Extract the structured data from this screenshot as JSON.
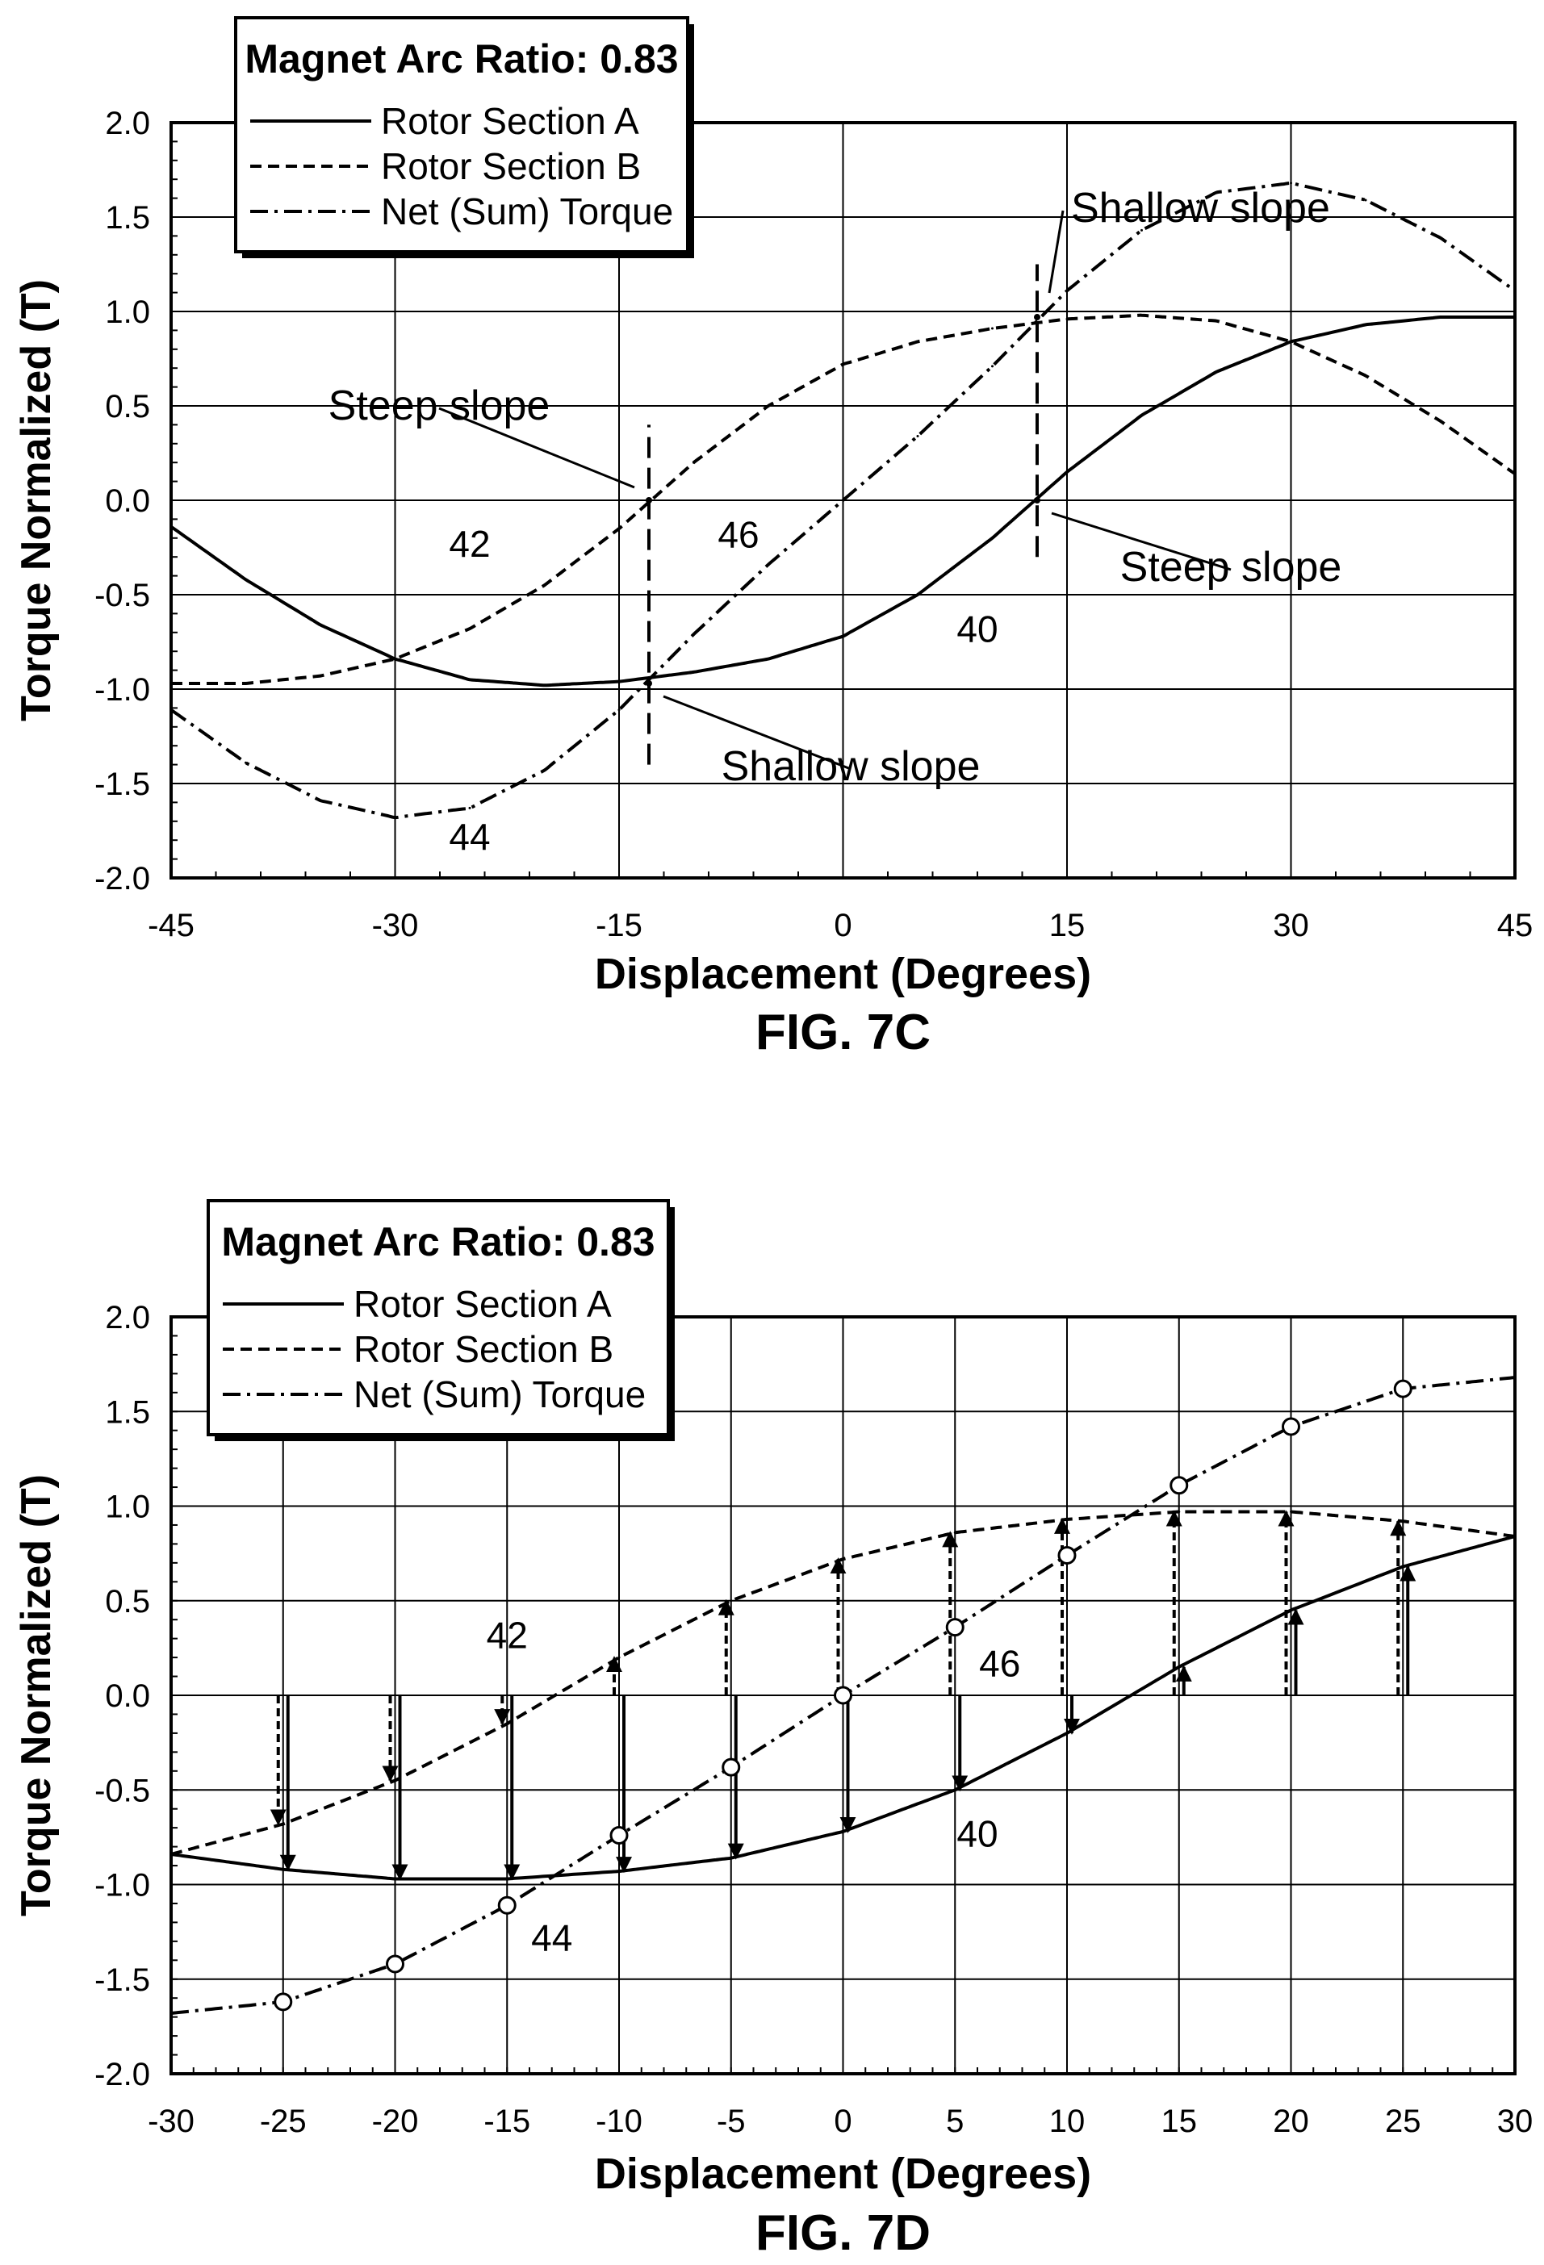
{
  "chart_data": [
    {
      "type": "line",
      "title": "",
      "caption": "FIG. 7C",
      "xlabel": "Displacement (Degrees)",
      "ylabel": "Torque Normalized (T)",
      "xlim": [
        -45,
        45
      ],
      "ylim": [
        -2.0,
        2.0
      ],
      "x_ticks": [
        -45,
        -30,
        -15,
        0,
        15,
        30,
        45
      ],
      "x_tick_labels": [
        "-45",
        "-30",
        "-15",
        "0",
        "15",
        "30",
        "45"
      ],
      "y_ticks": [
        2.0,
        1.5,
        1.0,
        0.5,
        0.0,
        -0.5,
        -1.0,
        -1.5,
        -2.0
      ],
      "y_tick_labels": [
        "2.0",
        "1.5",
        "1.0",
        "0.5",
        "0.0",
        "-0.5",
        "-1.0",
        "-1.5",
        "-2.0"
      ],
      "grid": true,
      "legend": {
        "placement": "top-left",
        "title": "Magnet Arc Ratio: 0.83",
        "entries": [
          "Rotor Section A",
          "Rotor Section B",
          "Net (Sum) Torque"
        ]
      },
      "series": [
        {
          "name": "Rotor Section A",
          "style": "solid",
          "ref": "40",
          "x": [
            -45,
            -40,
            -35,
            -30,
            -25,
            -20,
            -15,
            -10,
            -5,
            0,
            5,
            10,
            15,
            20,
            25,
            30,
            35,
            40,
            45
          ],
          "y": [
            -0.14,
            -0.42,
            -0.66,
            -0.84,
            -0.95,
            -0.98,
            -0.96,
            -0.91,
            -0.84,
            -0.72,
            -0.5,
            -0.2,
            0.15,
            0.45,
            0.68,
            0.84,
            0.93,
            0.97,
            0.97
          ]
        },
        {
          "name": "Rotor Section B",
          "style": "dashed",
          "ref": "42",
          "x": [
            -45,
            -40,
            -35,
            -30,
            -25,
            -20,
            -15,
            -10,
            -5,
            0,
            5,
            10,
            15,
            20,
            25,
            30,
            35,
            40,
            45
          ],
          "y": [
            -0.97,
            -0.97,
            -0.93,
            -0.84,
            -0.68,
            -0.45,
            -0.15,
            0.2,
            0.5,
            0.72,
            0.84,
            0.91,
            0.96,
            0.98,
            0.95,
            0.84,
            0.66,
            0.42,
            0.14
          ]
        },
        {
          "name": "Net (Sum) Torque",
          "style": "dashdot",
          "ref": "44 / 46",
          "x": [
            -45,
            -40,
            -35,
            -30,
            -25,
            -20,
            -15,
            -10,
            -5,
            0,
            5,
            10,
            15,
            20,
            25,
            30,
            35,
            40,
            45
          ],
          "y": [
            -1.11,
            -1.39,
            -1.59,
            -1.68,
            -1.63,
            -1.43,
            -1.11,
            -0.71,
            -0.34,
            0.0,
            0.34,
            0.71,
            1.11,
            1.43,
            1.63,
            1.68,
            1.59,
            1.39,
            1.11
          ]
        }
      ],
      "markers": [
        {
          "x": -13,
          "y": 0.0
        },
        {
          "x": -13,
          "y": -0.97
        },
        {
          "x": 13,
          "y": 0.97
        },
        {
          "x": 13,
          "y": 0.0
        }
      ],
      "vertical_dashed_lines": [
        {
          "x": -13,
          "y_from": -1.4,
          "y_to": 0.4
        },
        {
          "x": 13,
          "y_from": -0.3,
          "y_to": 1.25
        }
      ],
      "annotations": [
        {
          "text": "Shallow slope",
          "x": 13,
          "y": 0.97
        },
        {
          "text": "Steep slope",
          "x": -13,
          "y": 0.0
        },
        {
          "text": "Steep slope",
          "x": 13,
          "y": 0.0
        },
        {
          "text": "Shallow slope",
          "x": -13,
          "y": -0.97
        },
        {
          "text": "42",
          "x": -25,
          "y": -0.3
        },
        {
          "text": "46",
          "x": -7,
          "y": -0.25
        },
        {
          "text": "40",
          "x": 9,
          "y": -0.75
        },
        {
          "text": "44",
          "x": -25,
          "y": -1.85
        }
      ]
    },
    {
      "type": "line",
      "title": "",
      "caption": "FIG. 7D",
      "xlabel": "Displacement (Degrees)",
      "ylabel": "Torque Normalized (T)",
      "xlim": [
        -30,
        30
      ],
      "ylim": [
        -2.0,
        2.0
      ],
      "x_ticks": [
        -30,
        -25,
        -20,
        -15,
        -10,
        -5,
        0,
        5,
        10,
        15,
        20,
        25,
        30
      ],
      "x_tick_labels": [
        "-30",
        "-25",
        "-20",
        "-15",
        "-10",
        "-5",
        "0",
        "5",
        "10",
        "15",
        "20",
        "25",
        "30"
      ],
      "y_ticks": [
        2.0,
        1.5,
        1.0,
        0.5,
        0.0,
        -0.5,
        -1.0,
        -1.5,
        -2.0
      ],
      "y_tick_labels": [
        "2.0",
        "1.5",
        "1.0",
        "0.5",
        "0.0",
        "-0.5",
        "-1.0",
        "-1.5",
        "-2.0"
      ],
      "grid": true,
      "legend": {
        "placement": "top-left",
        "title": "Magnet Arc Ratio: 0.83",
        "entries": [
          "Rotor Section A",
          "Rotor Section B",
          "Net (Sum) Torque"
        ]
      },
      "series": [
        {
          "name": "Rotor Section A",
          "style": "solid",
          "ref": "40",
          "x": [
            -30,
            -25,
            -20,
            -15,
            -10,
            -5,
            0,
            5,
            10,
            15,
            20,
            25,
            30
          ],
          "y": [
            -0.84,
            -0.92,
            -0.97,
            -0.97,
            -0.93,
            -0.86,
            -0.72,
            -0.5,
            -0.2,
            0.15,
            0.45,
            0.68,
            0.84
          ]
        },
        {
          "name": "Rotor Section B",
          "style": "dashed",
          "ref": "42",
          "x": [
            -30,
            -25,
            -20,
            -15,
            -10,
            -5,
            0,
            5,
            10,
            15,
            20,
            25,
            30
          ],
          "y": [
            -0.84,
            -0.68,
            -0.45,
            -0.15,
            0.2,
            0.5,
            0.72,
            0.86,
            0.93,
            0.97,
            0.97,
            0.92,
            0.84
          ]
        },
        {
          "name": "Net (Sum) Torque",
          "style": "dashdot",
          "ref": "44 / 46",
          "x": [
            -30,
            -25,
            -20,
            -15,
            -10,
            -5,
            0,
            5,
            10,
            15,
            20,
            25,
            30
          ],
          "y": [
            -1.68,
            -1.62,
            -1.42,
            -1.11,
            -0.74,
            -0.38,
            0.0,
            0.36,
            0.74,
            1.11,
            1.42,
            1.62,
            1.68
          ]
        }
      ],
      "circle_markers": {
        "x": [
          -25,
          -20,
          -15,
          -10,
          -5,
          0,
          5,
          10,
          15,
          20,
          25
        ],
        "y": [
          -1.62,
          -1.42,
          -1.11,
          -0.74,
          -0.38,
          0.0,
          0.36,
          0.74,
          1.11,
          1.42,
          1.62
        ]
      },
      "arrows": {
        "x": [
          -25,
          -20,
          -15,
          -10,
          -5,
          0,
          5,
          10,
          15,
          20,
          25
        ],
        "section_b": [
          -0.68,
          -0.45,
          -0.15,
          0.2,
          0.5,
          0.72,
          0.86,
          0.93,
          0.97,
          0.97,
          0.92
        ],
        "section_a": [
          -0.92,
          -0.97,
          -0.97,
          -0.93,
          -0.86,
          -0.72,
          -0.5,
          -0.2,
          0.15,
          0.45,
          0.68
        ]
      },
      "annotations": [
        {
          "text": "42",
          "x": -15,
          "y": 0.25
        },
        {
          "text": "46",
          "x": 7,
          "y": 0.1
        },
        {
          "text": "40",
          "x": 6,
          "y": -0.8
        },
        {
          "text": "44",
          "x": -13,
          "y": -1.35
        }
      ]
    }
  ]
}
